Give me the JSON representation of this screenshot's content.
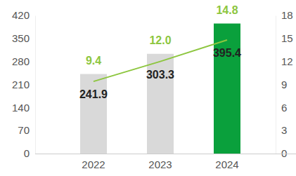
{
  "chart_data": {
    "type": "bar",
    "categories": [
      "2022",
      "2023",
      "2024"
    ],
    "series": [
      {
        "type": "bar",
        "colors": [
          "#d9d9d9",
          "#d9d9d9",
          "#0aa03c"
        ],
        "values": [
          241.9,
          303.3,
          395.4
        ]
      },
      {
        "type": "line",
        "axis": "y2",
        "color": "#8dc63f",
        "values": [
          9.4,
          12.0,
          14.8
        ],
        "value_labels": [
          "9.4",
          "12.0",
          "14.8"
        ]
      }
    ],
    "ylim": [
      0,
      420
    ],
    "yticks": [
      0,
      70,
      140,
      210,
      280,
      350,
      420
    ],
    "y2lim": [
      0,
      18
    ],
    "y2ticks": [
      0,
      3,
      6,
      9,
      12,
      15,
      18
    ],
    "grid": false,
    "data_labels": true
  }
}
